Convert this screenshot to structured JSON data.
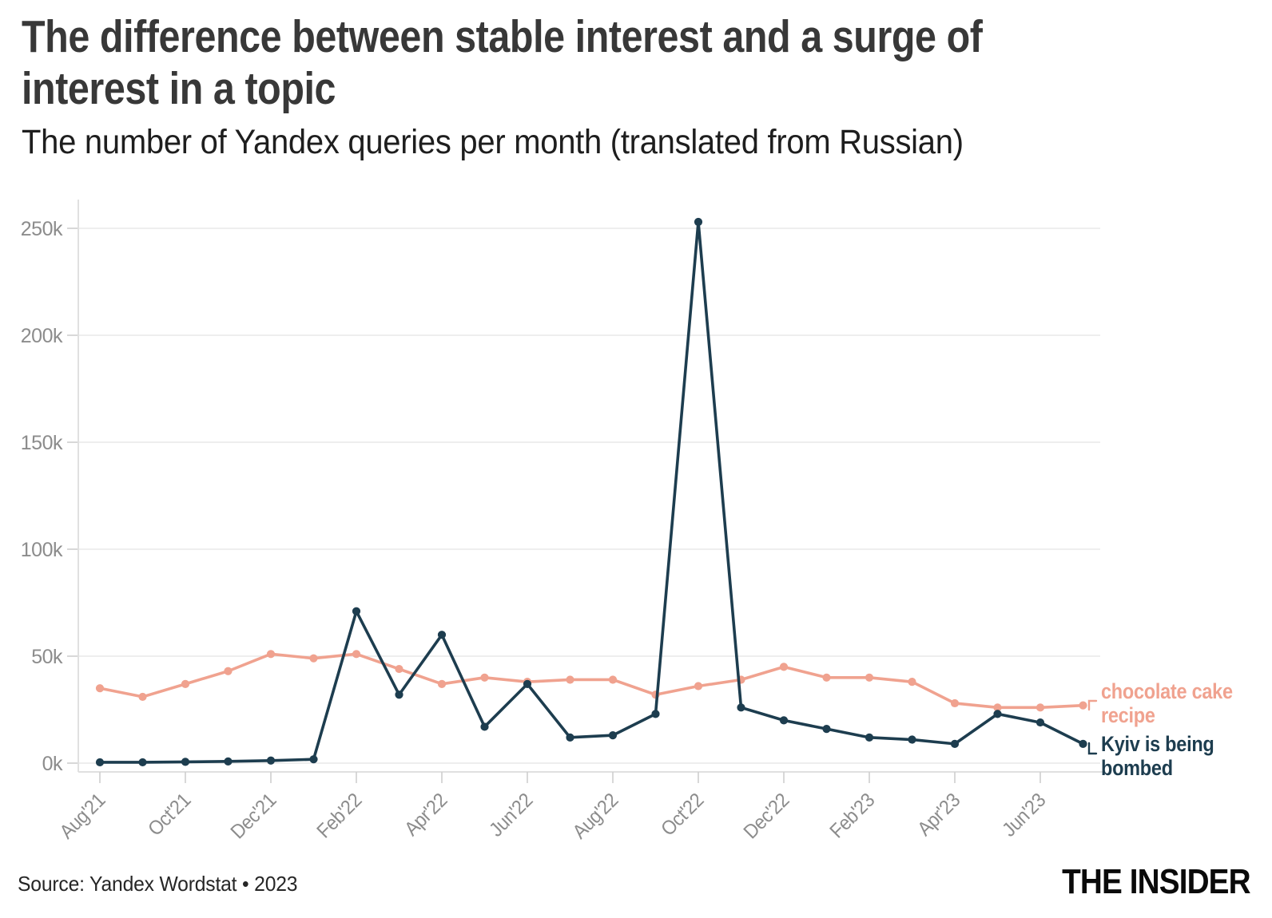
{
  "header": {
    "title_line1": "The difference between stable interest and a surge of",
    "title_line2": "interest in a topic",
    "subtitle": "The number of Yandex queries per month (translated from Russian)"
  },
  "chart_data": {
    "type": "line",
    "title": "The difference between stable interest and a surge of interest in a topic",
    "subtitle": "The number of Yandex queries per month (translated from Russian)",
    "x": [
      "Aug'21",
      "Sep'21",
      "Oct'21",
      "Nov'21",
      "Dec'21",
      "Jan'22",
      "Feb'22",
      "Mar'22",
      "Apr'22",
      "May'22",
      "Jun'22",
      "Jul'22",
      "Aug'22",
      "Sep'22",
      "Oct'22",
      "Nov'22",
      "Dec'22",
      "Jan'23",
      "Feb'23",
      "Mar'23",
      "Apr'23",
      "May'23",
      "Jun'23",
      "Jul'23"
    ],
    "x_axis_label_every": 2,
    "x_axis_labels_shown": [
      "Aug'21",
      "Oct'21",
      "Dec'21",
      "Feb'22",
      "Apr'22",
      "Jun'22",
      "Aug'22",
      "Oct'22",
      "Dec'22",
      "Feb'23",
      "Apr'23",
      "Jun'23"
    ],
    "y_ticks": [
      0,
      50,
      100,
      150,
      200,
      250
    ],
    "y_tick_labels": [
      "0k",
      "50k",
      "100k",
      "150k",
      "200k",
      "250k"
    ],
    "ylim": [
      0,
      263
    ],
    "unit": "thousands of queries per month",
    "grid": "horizontal",
    "legend_position": "right-of-line-ends",
    "series": [
      {
        "name": "chocolate cake recipe",
        "color": "#F0A28F",
        "label_lines": [
          "chocolate cake",
          "recipe"
        ],
        "values": [
          35,
          31,
          37,
          43,
          51,
          49,
          51,
          44,
          37,
          40,
          38,
          39,
          39,
          32,
          36,
          39,
          45,
          40,
          40,
          38,
          28,
          26,
          26,
          27
        ]
      },
      {
        "name": "Kyiv is being bombed",
        "color": "#1D3D4F",
        "label_lines": [
          "Kyiv is being",
          "bombed"
        ],
        "values": [
          0.4,
          0.4,
          0.6,
          0.8,
          1.2,
          1.8,
          71,
          32,
          60,
          17,
          37,
          12,
          13,
          23,
          253,
          26,
          20,
          16,
          12,
          11,
          9,
          23,
          19,
          9
        ]
      }
    ]
  },
  "footer": {
    "source": "Source: Yandex Wordstat • 2023",
    "logo": "THE INSIDER"
  }
}
